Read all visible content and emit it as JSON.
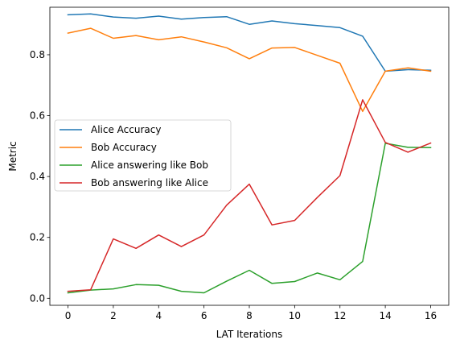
{
  "chart_data": {
    "type": "line",
    "title": "",
    "xlabel": "LAT Iterations",
    "ylabel": "Metric",
    "xlim": [
      -0.8,
      16.8
    ],
    "ylim": [
      -0.023,
      0.956
    ],
    "xticks": [
      0,
      2,
      4,
      6,
      8,
      10,
      12,
      14,
      16
    ],
    "yticks": [
      0.0,
      0.2,
      0.4,
      0.6,
      0.8
    ],
    "ytick_labels": [
      "0.0",
      "0.2",
      "0.4",
      "0.6",
      "0.8"
    ],
    "grid": false,
    "legend": "center-left",
    "x": [
      0,
      1,
      2,
      3,
      4,
      5,
      6,
      7,
      8,
      9,
      10,
      11,
      12,
      13,
      14,
      15,
      16
    ],
    "series": [
      {
        "name": "Alice Accuracy",
        "color": "#1f77b4",
        "values": [
          0.931,
          0.934,
          0.924,
          0.92,
          0.927,
          0.917,
          0.922,
          0.925,
          0.9,
          0.911,
          0.902,
          0.896,
          0.889,
          0.861,
          0.746,
          0.751,
          0.749
        ]
      },
      {
        "name": "Bob Accuracy",
        "color": "#ff7f0e",
        "values": [
          0.871,
          0.887,
          0.854,
          0.863,
          0.849,
          0.859,
          0.842,
          0.823,
          0.787,
          0.822,
          0.824,
          0.798,
          0.772,
          0.614,
          0.746,
          0.757,
          0.746
        ]
      },
      {
        "name": "Alice answering like Bob",
        "color": "#2ca02c",
        "values": [
          0.018,
          0.027,
          0.031,
          0.045,
          0.043,
          0.023,
          0.018,
          0.056,
          0.092,
          0.049,
          0.055,
          0.083,
          0.061,
          0.121,
          0.509,
          0.496,
          0.495
        ]
      },
      {
        "name": "Bob answering like Alice",
        "color": "#d62728",
        "values": [
          0.023,
          0.028,
          0.195,
          0.164,
          0.208,
          0.17,
          0.208,
          0.306,
          0.375,
          0.241,
          0.256,
          0.331,
          0.403,
          0.652,
          0.512,
          0.48,
          0.51
        ]
      }
    ]
  }
}
